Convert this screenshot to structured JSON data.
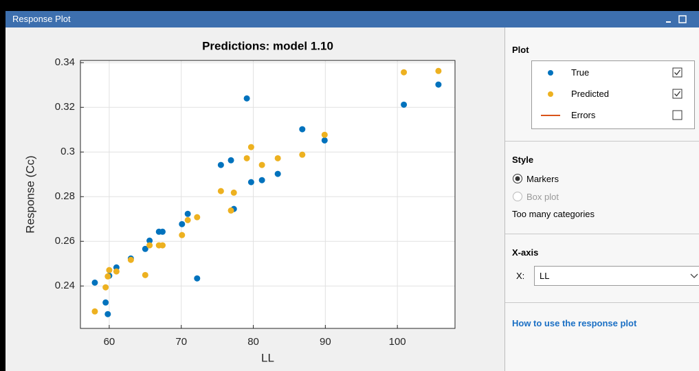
{
  "window": {
    "title": "Response Plot"
  },
  "chart_data": {
    "type": "scatter",
    "title": "Predictions: model 1.10",
    "x_label": "LL",
    "y_label": "Response (Cc)",
    "x": [
      58.0,
      59.5,
      59.8,
      60.0,
      61.0,
      63.0,
      65.0,
      65.6,
      66.9,
      67.4,
      70.1,
      70.9,
      72.2,
      75.5,
      76.9,
      77.3,
      79.1,
      79.7,
      81.2,
      83.4,
      86.8,
      89.9,
      100.9,
      105.7
    ],
    "series": [
      {
        "name": "True",
        "color": "#0072bd",
        "values": [
          0.2415,
          0.2326,
          0.2274,
          0.2446,
          0.2483,
          0.2523,
          0.2566,
          0.2603,
          0.2643,
          0.2643,
          0.2677,
          0.2723,
          0.2434,
          0.2942,
          0.2963,
          0.2745,
          0.324,
          0.2865,
          0.2874,
          0.2902,
          0.3102,
          0.3052,
          0.3212,
          0.3302
        ]
      },
      {
        "name": "Predicted",
        "color": "#edb120",
        "values": [
          0.2286,
          0.2394,
          0.2443,
          0.2471,
          0.2465,
          0.2517,
          0.2449,
          0.2582,
          0.2582,
          0.2582,
          0.2628,
          0.2695,
          0.2708,
          0.2825,
          0.2738,
          0.2818,
          0.2972,
          0.3022,
          0.2942,
          0.2972,
          0.2988,
          0.3077,
          0.3357,
          0.3363
        ]
      }
    ],
    "xlim": [
      56,
      108
    ],
    "ylim": [
      0.221,
      0.341
    ],
    "xticks": [
      60,
      70,
      80,
      90,
      100
    ],
    "yticks": [
      0.24,
      0.26,
      0.28,
      0.3,
      0.32,
      0.34
    ],
    "grid": true
  },
  "panel": {
    "plot_heading": "Plot",
    "checked": [
      true,
      true,
      false
    ],
    "errors_label": "Errors",
    "errors_color": "#d95319",
    "style_heading": "Style",
    "style_options": [
      {
        "label": "Markers",
        "selected": true,
        "enabled": true
      },
      {
        "label": "Box plot",
        "selected": false,
        "enabled": false
      }
    ],
    "style_note": "Too many categories",
    "xaxis_heading": "X-axis",
    "x_label": "X:",
    "x_value": "LL",
    "help_link": "How to use the response plot"
  }
}
